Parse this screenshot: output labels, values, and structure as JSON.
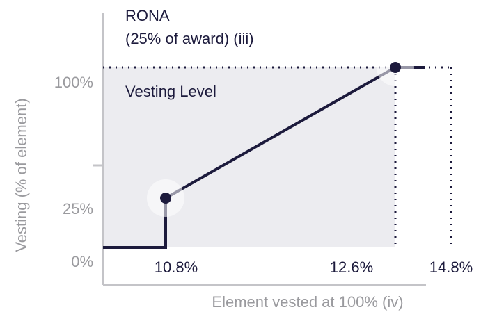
{
  "chart_data": {
    "type": "line",
    "title": "RONA",
    "subtitle": "(25% of award) (iii)",
    "annotation": "Vesting Level",
    "x_label": "Element vested at 100% (iv)",
    "y_label": "Vesting (% of element)",
    "x": [
      10.8,
      12.6
    ],
    "series": [
      {
        "color": "#1c1a3c",
        "values": [
          25,
          100
        ]
      }
    ],
    "xticks": [
      {
        "value": 10.8,
        "label": "10.8%"
      },
      {
        "value": 12.6,
        "label": "12.6%"
      },
      {
        "value": 14.8,
        "label": "14.8%"
      }
    ],
    "yticks": [
      {
        "value": 0,
        "label": "0%"
      },
      {
        "value": 25,
        "label": "25%"
      },
      {
        "value": 100,
        "label": "100%"
      }
    ]
  }
}
